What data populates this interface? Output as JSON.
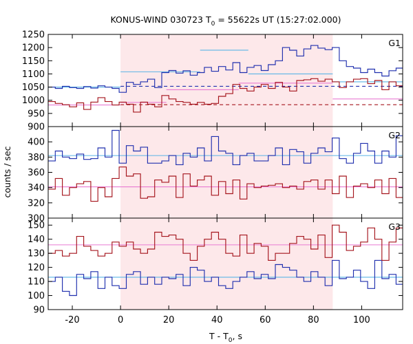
{
  "title": {
    "prefix": "KONUS-WIND 030723 T",
    "sub": "0",
    "suffix": " = 55622s UT (15:27:02.000)"
  },
  "axes": {
    "ylabel": "counts / sec",
    "xlabel_prefix": "T - T",
    "xlabel_sub": "0",
    "xlabel_suffix": ", s",
    "xlim": [
      -30,
      117
    ],
    "xticks": [
      -20,
      0,
      20,
      40,
      60,
      80,
      100
    ]
  },
  "colors": {
    "blue": "#1f2fae",
    "red": "#a5141c",
    "light_blue": "#5ab4e6",
    "pink": "#e87ad2",
    "shade": "#fde8ea",
    "dashed_blue": "#1f2fae",
    "dashed_red": "#a5141c"
  },
  "shaded_interval": [
    0,
    88
  ],
  "chart_data": [
    {
      "type": "line",
      "panel": "G1",
      "ylim": [
        900,
        1250
      ],
      "yticks": [
        900,
        950,
        1000,
        1050,
        1100,
        1150,
        1200,
        1250
      ],
      "bin_width": 2.944,
      "x_start": -30,
      "series": [
        {
          "color_key": "blue",
          "values": [
            1050,
            1045,
            1053,
            1048,
            1045,
            1052,
            1046,
            1055,
            1050,
            1045,
            1030,
            1068,
            1060,
            1070,
            1080,
            1048,
            1105,
            1113,
            1103,
            1112,
            1095,
            1105,
            1125,
            1110,
            1128,
            1115,
            1143,
            1105,
            1125,
            1132,
            1113,
            1135,
            1150,
            1200,
            1190,
            1168,
            1195,
            1208,
            1198,
            1192,
            1200,
            1150,
            1128,
            1122,
            1105,
            1118,
            1105,
            1092,
            1112,
            1122,
            1108,
            1132,
            1110,
            1122,
            1102,
            1070,
            1055,
            1080,
            1085,
            1065,
            1072,
            1060,
            1080,
            1078,
            1060,
            1070,
            1090,
            1082,
            1065,
            1070
          ]
        },
        {
          "color_key": "red",
          "values": [
            995,
            988,
            983,
            975,
            990,
            965,
            993,
            1010,
            995,
            982,
            993,
            985,
            955,
            993,
            985,
            975,
            1018,
            1005,
            995,
            992,
            985,
            992,
            985,
            988,
            1015,
            1025,
            1060,
            1045,
            1035,
            1050,
            1060,
            1045,
            1068,
            1050,
            1035,
            1075,
            1078,
            1082,
            1072,
            1080,
            1070,
            1048,
            1070,
            1080,
            1082,
            1063,
            1075,
            1040,
            1070,
            1055,
            1025,
            1005,
            1000,
            1010,
            1025,
            1005,
            995,
            1015,
            1000,
            1003,
            992,
            985,
            1010,
            1018,
            995,
            1010,
            985,
            995,
            985,
            975
          ]
        }
      ],
      "fits": [
        {
          "color_key": "light_blue",
          "segments": [
            [
              -30,
              0,
              1050
            ],
            [
              0,
              33,
              1108
            ],
            [
              33,
              53,
              1190
            ],
            [
              53,
              88,
              1100
            ],
            [
              88,
              117,
              1070
            ]
          ]
        },
        {
          "color_key": "pink",
          "segments": [
            [
              -30,
              0,
              982
            ],
            [
              0,
              19,
              992
            ],
            [
              19,
              49,
              1040
            ],
            [
              49,
              88,
              1065
            ],
            [
              88,
              117,
              1005
            ]
          ]
        }
      ],
      "dashed": [
        {
          "color_key": "dashed_blue",
          "from": 0,
          "to": 117,
          "y": 1053
        },
        {
          "color_key": "dashed_red",
          "from": 0,
          "to": 117,
          "y": 983
        }
      ],
      "label": "G1"
    },
    {
      "type": "line",
      "panel": "G2",
      "ylim": [
        300,
        420
      ],
      "yticks": [
        300,
        320,
        340,
        360,
        380,
        400
      ],
      "bin_width": 2.944,
      "x_start": -30,
      "series": [
        {
          "color_key": "blue",
          "values": [
            375,
            388,
            380,
            378,
            384,
            377,
            378,
            392,
            380,
            415,
            372,
            395,
            388,
            393,
            372,
            372,
            375,
            382,
            370,
            385,
            380,
            392,
            375,
            407,
            388,
            385,
            370,
            382,
            385,
            375,
            375,
            382,
            392,
            370,
            390,
            387,
            372,
            385,
            392,
            387,
            405,
            378,
            372,
            385,
            398,
            388,
            372,
            388,
            380,
            408,
            378,
            382,
            378,
            388,
            375,
            372,
            385,
            392,
            382,
            374,
            390,
            394,
            378,
            390,
            394,
            374,
            384,
            405,
            396,
            385
          ]
        },
        {
          "color_key": "red",
          "values": [
            338,
            352,
            330,
            340,
            345,
            348,
            322,
            340,
            328,
            352,
            367,
            355,
            358,
            326,
            328,
            350,
            347,
            355,
            327,
            358,
            342,
            350,
            355,
            330,
            348,
            332,
            350,
            325,
            345,
            340,
            342,
            343,
            345,
            340,
            342,
            338,
            348,
            350,
            338,
            350,
            332,
            355,
            327,
            342,
            345,
            340,
            350,
            332,
            352,
            327,
            355,
            340,
            348,
            337,
            365,
            342,
            350,
            345,
            328,
            342,
            337,
            332,
            346,
            340,
            350,
            332,
            342,
            352,
            340,
            347
          ]
        }
      ],
      "fits": [
        {
          "color_key": "light_blue",
          "segments": [
            [
              -30,
              117,
              382
            ]
          ]
        },
        {
          "color_key": "pink",
          "segments": [
            [
              -30,
              117,
              341
            ]
          ]
        }
      ],
      "dashed": [],
      "label": "G2"
    },
    {
      "type": "line",
      "panel": "G3",
      "ylim": [
        90,
        155
      ],
      "yticks": [
        90,
        100,
        110,
        120,
        130,
        140,
        150
      ],
      "bin_width": 2.944,
      "x_start": -30,
      "series": [
        {
          "color_key": "blue",
          "values": [
            110,
            113,
            103,
            100,
            115,
            112,
            117,
            105,
            113,
            107,
            105,
            115,
            117,
            108,
            113,
            108,
            113,
            112,
            115,
            107,
            120,
            118,
            110,
            113,
            107,
            105,
            110,
            113,
            117,
            112,
            115,
            112,
            122,
            120,
            118,
            113,
            110,
            117,
            113,
            107,
            125,
            112,
            113,
            118,
            110,
            105,
            125,
            112,
            115,
            108,
            103,
            112,
            122,
            110,
            113,
            113,
            113,
            115,
            108,
            113,
            102,
            103,
            113,
            112,
            115,
            110,
            112,
            110,
            115,
            112
          ]
        },
        {
          "color_key": "red",
          "values": [
            130,
            132,
            128,
            130,
            142,
            135,
            132,
            128,
            130,
            138,
            135,
            138,
            133,
            130,
            133,
            145,
            142,
            143,
            140,
            130,
            125,
            135,
            140,
            145,
            140,
            130,
            128,
            143,
            130,
            137,
            135,
            125,
            130,
            130,
            137,
            142,
            140,
            133,
            143,
            127,
            150,
            145,
            132,
            135,
            138,
            148,
            140,
            125,
            138,
            148,
            142,
            145,
            140,
            145,
            143,
            135,
            105,
            142,
            137,
            135,
            133,
            142,
            133,
            138,
            137,
            135,
            142,
            128,
            130,
            128
          ]
        }
      ],
      "fits": [
        {
          "color_key": "light_blue",
          "segments": [
            [
              -30,
              117,
              113
            ]
          ]
        },
        {
          "color_key": "pink",
          "segments": [
            [
              -30,
              117,
              136
            ]
          ]
        }
      ],
      "dashed": [],
      "label": "G3"
    }
  ]
}
